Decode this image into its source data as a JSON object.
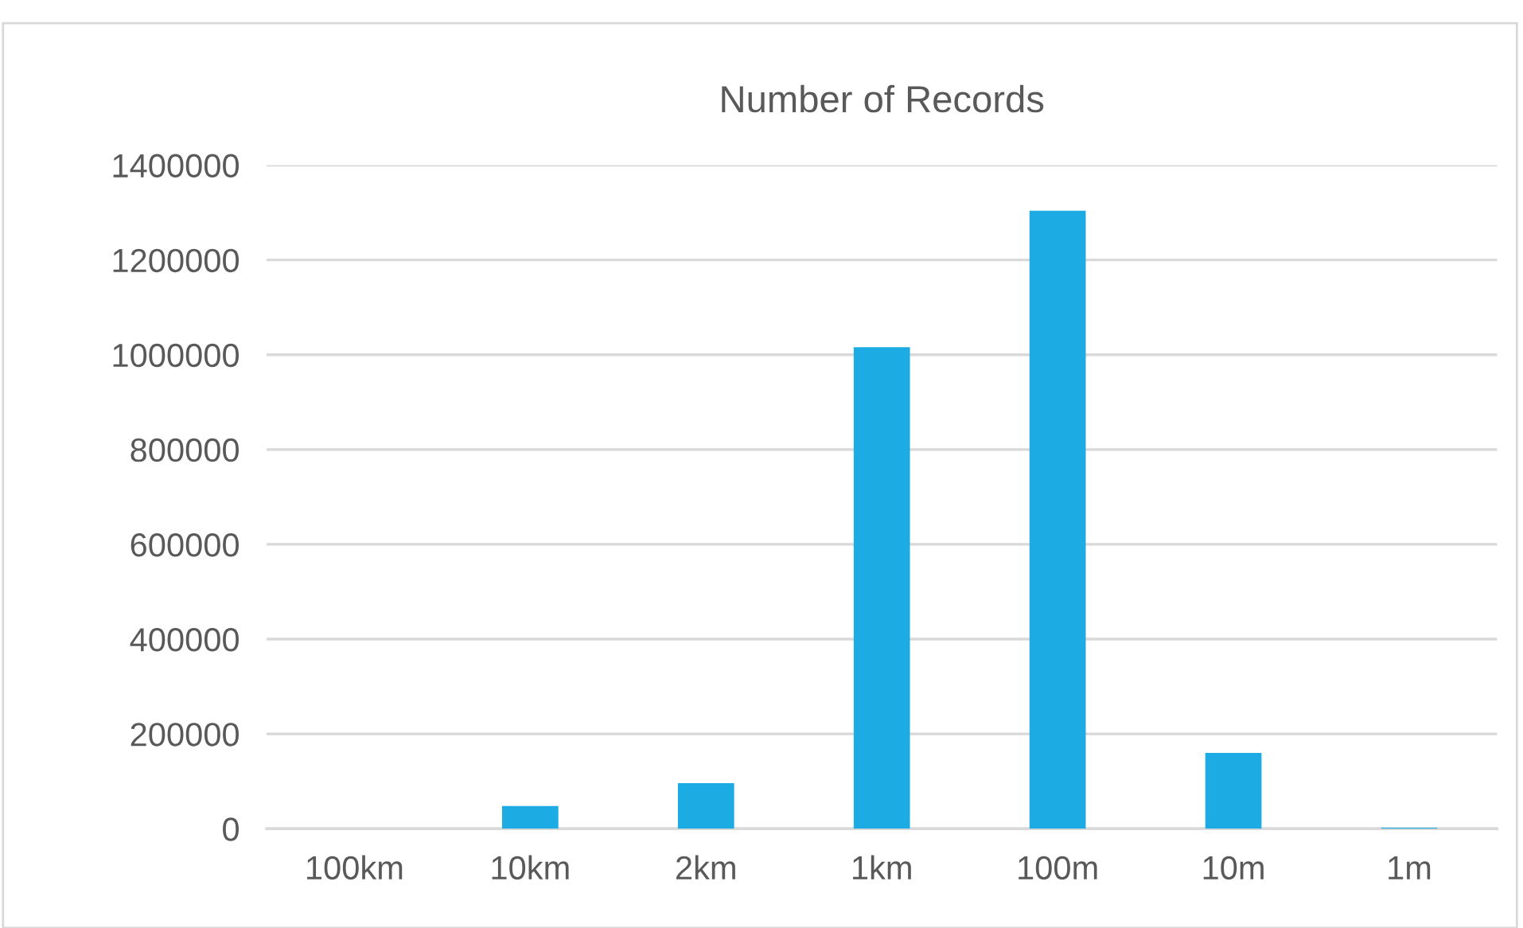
{
  "chart_data": {
    "type": "bar",
    "title": "Number of Records",
    "categories": [
      "100km",
      "10km",
      "2km",
      "1km",
      "100m",
      "10m",
      "1m"
    ],
    "values": [
      0,
      48000,
      96000,
      1016000,
      1304000,
      160000,
      2000
    ],
    "color": "#1cace3",
    "ylim": [
      0,
      1400000
    ],
    "yticks": [
      0,
      200000,
      400000,
      600000,
      800000,
      1000000,
      1200000,
      1400000
    ],
    "grid": "y"
  }
}
